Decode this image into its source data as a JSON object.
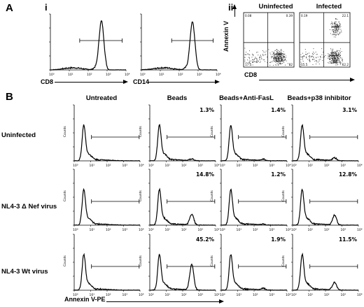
{
  "figure": {
    "panel_a": "A",
    "panel_b": "B",
    "sub_i": "i",
    "sub_ii": "ii",
    "annexin_axis_label": "Annexin V-PE"
  },
  "chart_data": [
    {
      "id": "A-i-cd8",
      "type": "line",
      "xlabel": "CD8",
      "x_scale": "log",
      "xlim": [
        1,
        10000
      ],
      "peak_log": 2.7,
      "peak_height": 0.92,
      "gate": [
        1.55,
        3.8
      ]
    },
    {
      "id": "A-i-cd14",
      "type": "line",
      "xlabel": "CD14",
      "x_scale": "log",
      "xlim": [
        1,
        10000
      ],
      "peak_log": 2.7,
      "peak_height": 0.9,
      "gate": [
        1.6,
        3.8
      ]
    },
    {
      "id": "A-ii-uninfected",
      "type": "scatter",
      "title": "Uninfected",
      "xlabel": "CD8",
      "ylabel": "Annexin V",
      "quadrants": {
        "ul": "0.08",
        "ur": "0.39",
        "ll": "17.5",
        "lr": "82"
      }
    },
    {
      "id": "A-ii-infected",
      "type": "scatter",
      "title": "Infected",
      "xlabel": "CD8",
      "ylabel": "Annexin V",
      "quadrants": {
        "ul": "0.19",
        "ur": "22.1",
        "ll": "15.5",
        "lr": "62.2"
      }
    },
    {
      "id": "B-grid",
      "type": "line",
      "x_scale": "log",
      "xlim": [
        1,
        10000
      ],
      "columns": [
        "Untreated",
        "Beads",
        "Beads+Anti-FasL",
        "Beads+p38 inhibitor"
      ],
      "rows": [
        "Uninfected",
        "NL4-3 Δ Nef virus",
        "NL4-3 Wt virus"
      ],
      "ylabel": "Counts",
      "percent_positive": [
        [
          "",
          "1.3%",
          "1.4%",
          "3.1%"
        ],
        [
          "",
          "14.8%",
          "1.2%",
          "12.8%"
        ],
        [
          "",
          "45.2%",
          "1.9%",
          "11.5%"
        ]
      ],
      "second_peak_height": [
        [
          0,
          0.03,
          0.03,
          0.05
        ],
        [
          0,
          0.2,
          0.02,
          0.18
        ],
        [
          0,
          0.48,
          0.03,
          0.14
        ]
      ]
    }
  ]
}
